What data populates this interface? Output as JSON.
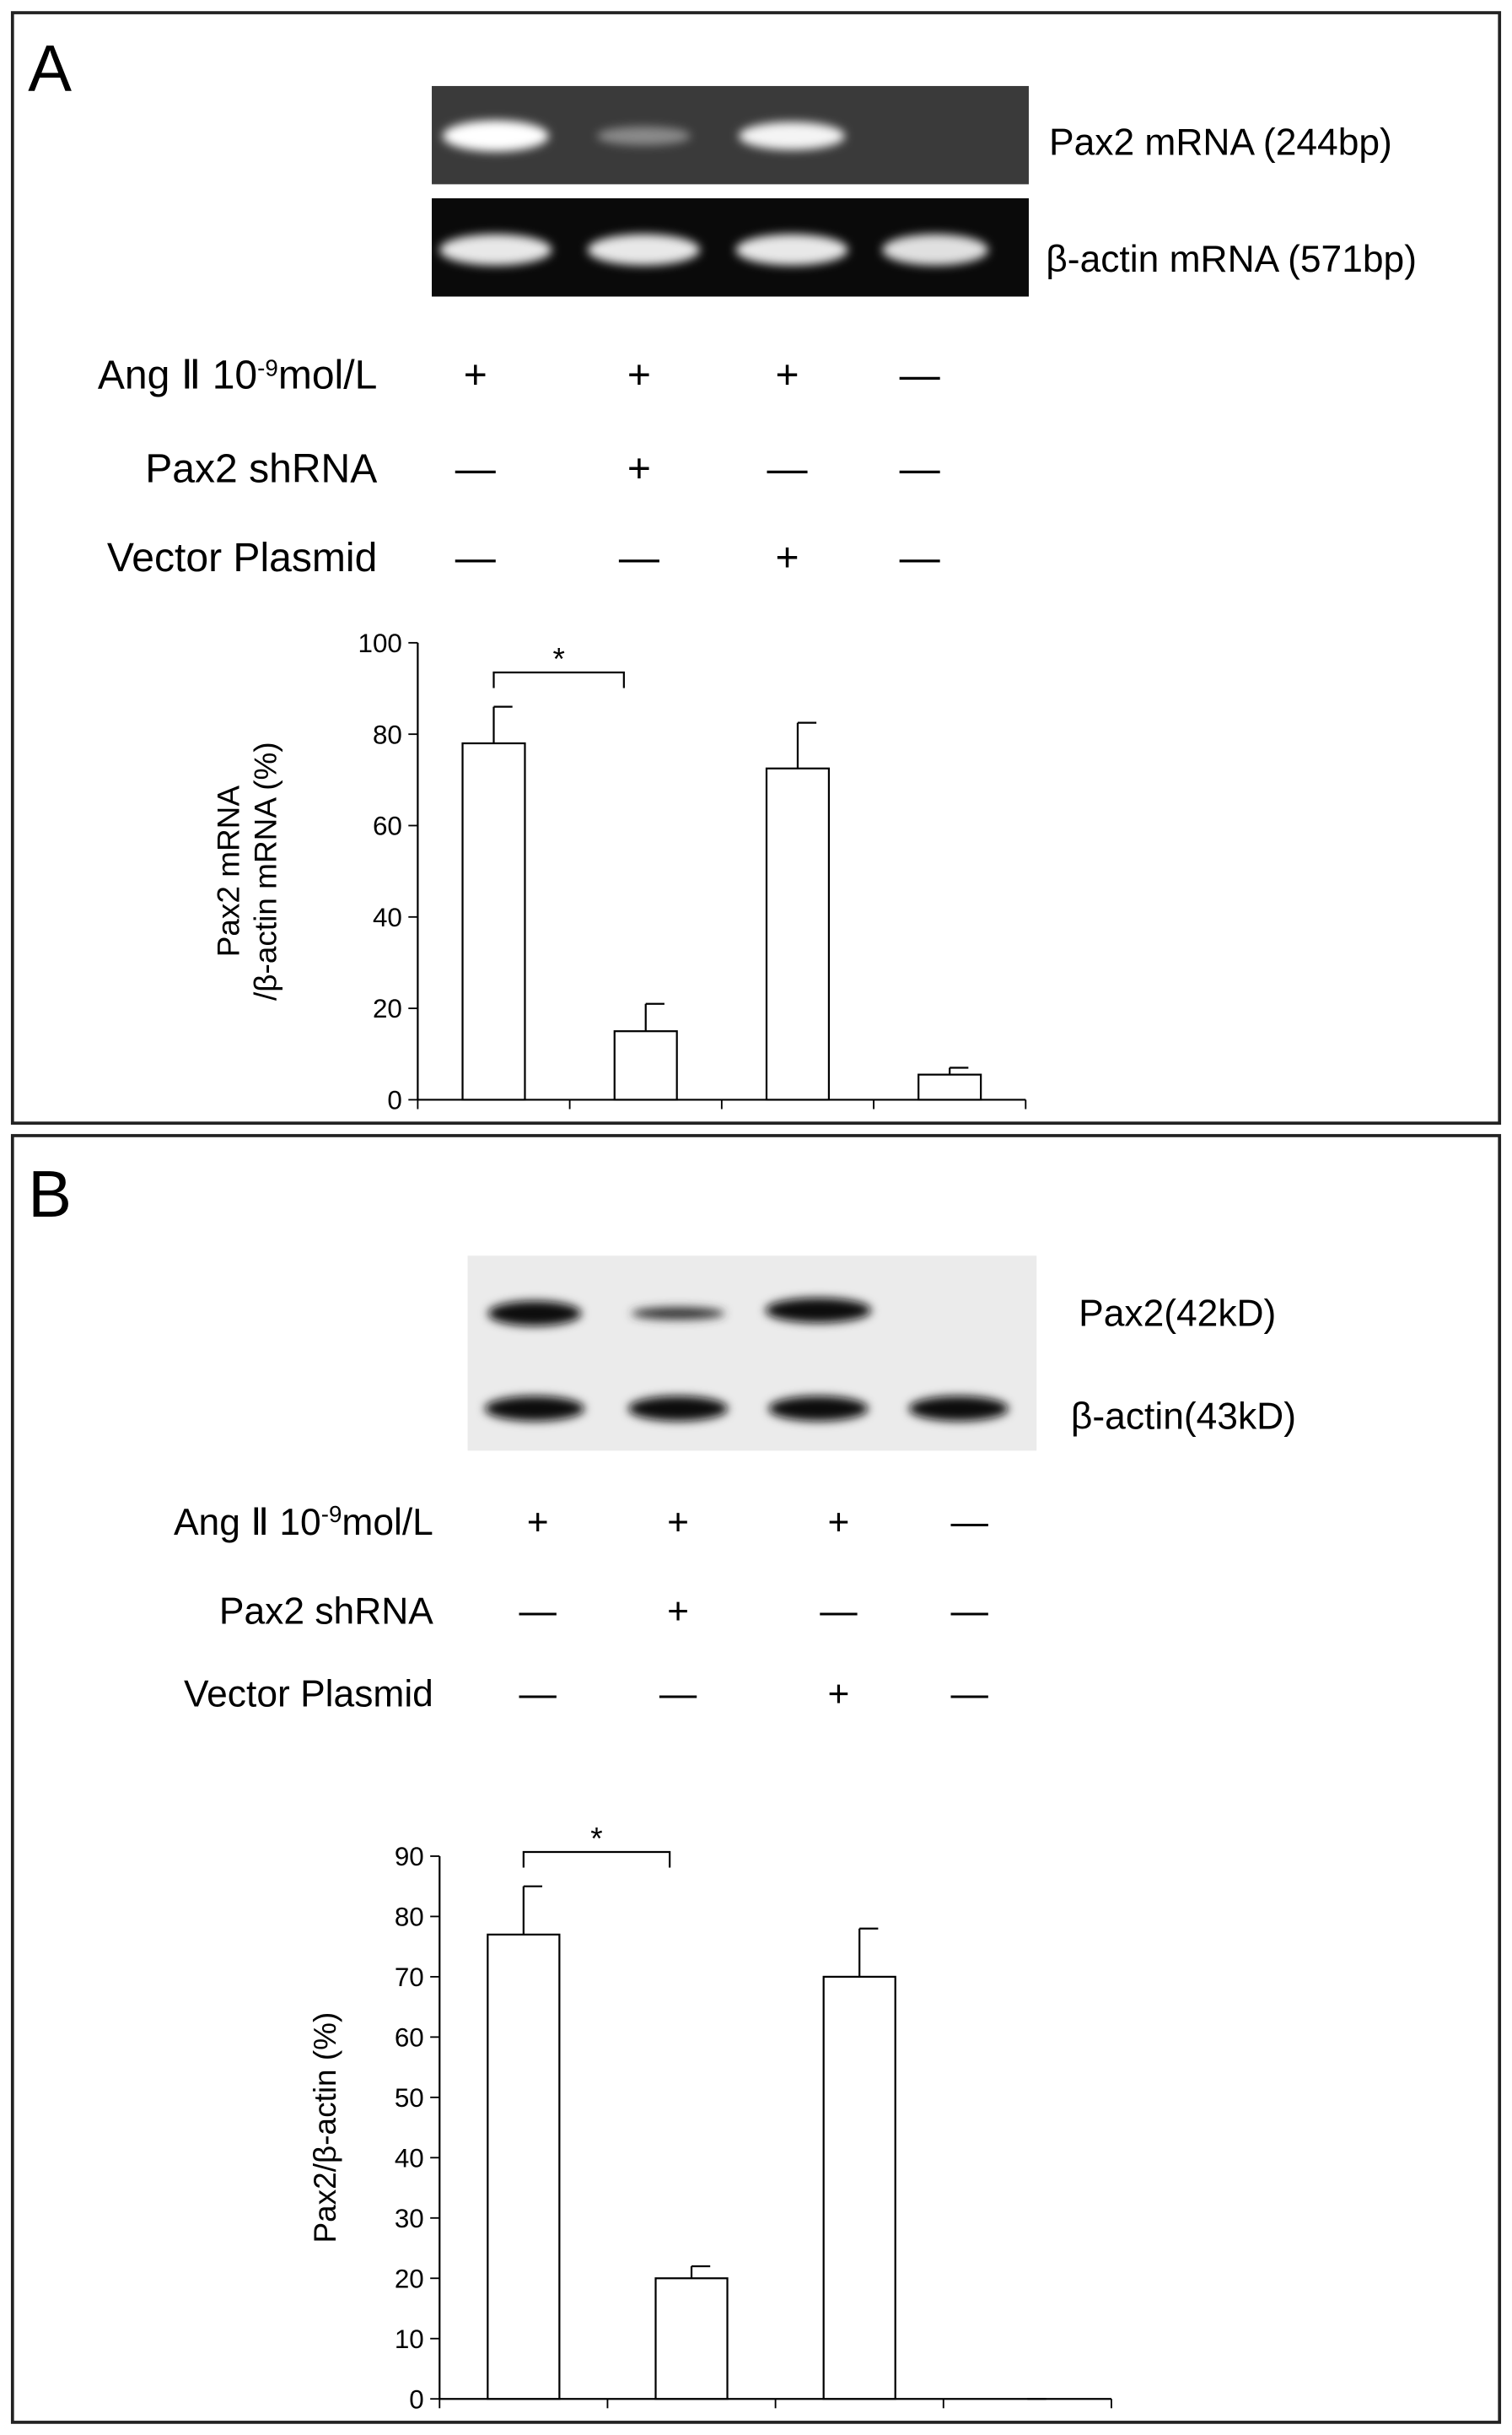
{
  "panels": [
    {
      "label": "A",
      "blot_labels": [
        "Pax2 mRNA (244bp)",
        "β-actin mRNA (571bp)"
      ],
      "conditions": [
        {
          "name": {
            "prefix": "Ang Ⅱ 10",
            "superscript": "-9",
            "suffix": "mol/L"
          },
          "signs": [
            "+",
            "+",
            "+",
            "—"
          ]
        },
        {
          "name": {
            "prefix": "Pax2 shRNA"
          },
          "signs": [
            "—",
            "+",
            "—",
            "—"
          ]
        },
        {
          "name": {
            "prefix": "Vector Plasmid"
          },
          "signs": [
            "—",
            "—",
            "+",
            "—"
          ]
        }
      ]
    },
    {
      "label": "B",
      "blot_labels": [
        "Pax2(42kD)",
        "β-actin(43kD)"
      ],
      "conditions": [
        {
          "name": {
            "prefix": "Ang Ⅱ 10",
            "superscript": "-9",
            "suffix": "mol/L"
          },
          "signs": [
            "+",
            "+",
            "+",
            "—"
          ]
        },
        {
          "name": {
            "prefix": "Pax2 shRNA"
          },
          "signs": [
            "—",
            "+",
            "—",
            "—"
          ]
        },
        {
          "name": {
            "prefix": "Vector Plasmid"
          },
          "signs": [
            "—",
            "—",
            "+",
            "—"
          ]
        }
      ]
    }
  ],
  "chart_data": [
    {
      "type": "bar",
      "ylabel": [
        "Pax2 mRNA",
        "/β-actin mRNA (%)"
      ],
      "categories": [
        null,
        null,
        null,
        null
      ],
      "values": [
        78,
        15,
        72.5,
        5.5
      ],
      "errors": [
        8,
        6,
        10,
        1.5
      ],
      "color": "#ffffff",
      "ylim": [
        0,
        100
      ],
      "yticks": [
        0,
        20,
        40,
        60,
        80,
        100
      ],
      "annotations": [
        {
          "text": "*"
        }
      ]
    },
    {
      "type": "bar",
      "ylabel": [
        "Pax2/β-actin (%)"
      ],
      "categories": [
        null,
        null,
        null,
        null
      ],
      "values": [
        77,
        20,
        70,
        0
      ],
      "errors": [
        8,
        2,
        8,
        0
      ],
      "color": "#ffffff",
      "ylim": [
        0,
        90
      ],
      "yticks": [
        0,
        10,
        20,
        30,
        40,
        50,
        60,
        70,
        80,
        90
      ],
      "annotations": [
        {
          "text": "*"
        }
      ]
    }
  ]
}
